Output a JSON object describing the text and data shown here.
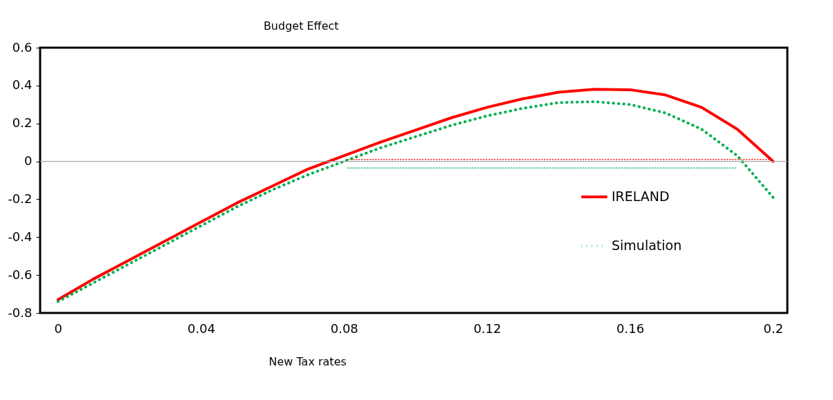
{
  "chart_data": {
    "type": "line",
    "title": "Budget Effect",
    "xlabel": "New Tax rates",
    "x": [
      0,
      0.01,
      0.02,
      0.03,
      0.04,
      0.05,
      0.06,
      0.07,
      0.08,
      0.09,
      0.1,
      0.11,
      0.12,
      0.13,
      0.14,
      0.15,
      0.16,
      0.17,
      0.18,
      0.19,
      0.2
    ],
    "series": [
      {
        "name": "IRELAND",
        "color": "#ff0000",
        "line_style": "solid",
        "values": [
          -0.73,
          -0.62,
          -0.52,
          -0.42,
          -0.32,
          -0.22,
          -0.13,
          -0.04,
          0.03,
          0.1,
          0.165,
          0.23,
          0.285,
          0.33,
          0.365,
          0.38,
          0.378,
          0.35,
          0.285,
          0.17,
          0.0
        ]
      },
      {
        "name": "Simulation",
        "color": "#00b050",
        "line_style": "dotted",
        "values": [
          -0.74,
          -0.64,
          -0.54,
          -0.44,
          -0.34,
          -0.24,
          -0.15,
          -0.07,
          0.0,
          0.07,
          0.13,
          0.19,
          0.24,
          0.28,
          0.31,
          0.315,
          0.3,
          0.255,
          0.17,
          0.03,
          -0.19
        ]
      },
      {
        "color": "#ff0000",
        "line_style": "dotted",
        "x": [
          0.081,
          0.2
        ],
        "values": [
          0.01,
          0.01
        ]
      },
      {
        "color": "#00b050",
        "line_style": "dotted",
        "x": [
          0.081,
          0.19
        ],
        "values": [
          -0.035,
          -0.035
        ]
      }
    ],
    "ref_lines": [
      {
        "axis": "y",
        "value": 0,
        "color": "#a6a6a6",
        "line_style": "solid"
      }
    ],
    "xlim": [
      -0.005,
      0.204
    ],
    "xticks": [
      0,
      0.04,
      0.08,
      0.12,
      0.16,
      0.2
    ],
    "ylim": [
      -0.8,
      0.6
    ],
    "yticks": [
      -0.8,
      -0.6,
      -0.4,
      -0.2,
      0,
      0.2,
      0.4,
      0.6
    ],
    "grid": false,
    "legend": "right",
    "marker": "none"
  }
}
